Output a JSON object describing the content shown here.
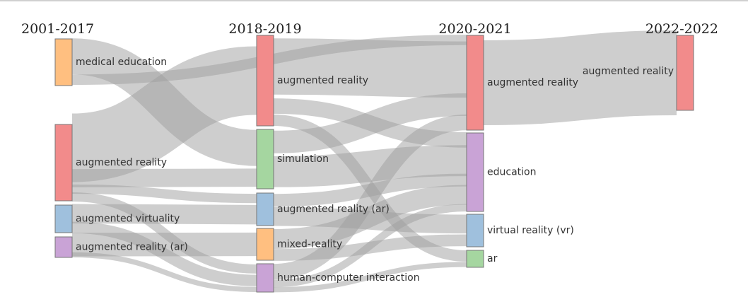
{
  "columns": [
    "2001-2017",
    "2018-2019",
    "2020-2021",
    "2022-2022"
  ],
  "nodes": [
    {
      "id": "c0_medical",
      "label": "medical education",
      "column": 0,
      "color": "#ffbf80"
    },
    {
      "id": "c0_ar",
      "label": "augmented reality",
      "column": 0,
      "color": "#f28b8b"
    },
    {
      "id": "c0_av",
      "label": "augmented virtuality",
      "column": 0,
      "color": "#9fc0dd"
    },
    {
      "id": "c0_arar",
      "label": "augmented reality (ar)",
      "column": 0,
      "color": "#c9a3d6"
    },
    {
      "id": "c1_ar",
      "label": "augmented reality",
      "column": 1,
      "color": "#f28b8b"
    },
    {
      "id": "c1_sim",
      "label": "simulation",
      "column": 1,
      "color": "#a5d6a0"
    },
    {
      "id": "c1_arar",
      "label": "augmented reality (ar)",
      "column": 1,
      "color": "#9fc0dd"
    },
    {
      "id": "c1_mr",
      "label": "mixed-reality",
      "column": 1,
      "color": "#ffbf80"
    },
    {
      "id": "c1_hci",
      "label": "human-computer interaction",
      "column": 1,
      "color": "#c9a3d6"
    },
    {
      "id": "c2_ar",
      "label": "augmented reality",
      "column": 2,
      "color": "#f28b8b"
    },
    {
      "id": "c2_edu",
      "label": "education",
      "column": 2,
      "color": "#c9a3d6"
    },
    {
      "id": "c2_vr",
      "label": "virtual reality (vr)",
      "column": 2,
      "color": "#9fc0dd"
    },
    {
      "id": "c2_ar2",
      "label": "ar",
      "column": 2,
      "color": "#a5d6a0"
    },
    {
      "id": "c3_ar",
      "label": "augmented reality",
      "column": 3,
      "color": "#f28b8b"
    }
  ],
  "links": [
    {
      "source": "c0_medical",
      "target": "c1_sim",
      "value": 30
    },
    {
      "source": "c0_medical",
      "target": "c2_ar",
      "value": 10
    },
    {
      "source": "c0_ar",
      "target": "c1_ar",
      "value": 60
    },
    {
      "source": "c0_ar",
      "target": "c1_sim",
      "value": 18
    },
    {
      "source": "c0_ar",
      "target": "c1_arar",
      "value": 10
    },
    {
      "source": "c0_ar",
      "target": "c1_hci",
      "value": 10
    },
    {
      "source": "c0_av",
      "target": "c1_arar",
      "value": 20
    },
    {
      "source": "c0_av",
      "target": "c1_hci",
      "value": 12
    },
    {
      "source": "c0_arar",
      "target": "c1_mr",
      "value": 15
    },
    {
      "source": "c0_arar",
      "target": "c1_hci",
      "value": 5
    },
    {
      "source": "c1_ar",
      "target": "c2_ar",
      "value": 55
    },
    {
      "source": "c1_ar",
      "target": "c2_edu",
      "value": 15
    },
    {
      "source": "c1_ar",
      "target": "c2_ar2",
      "value": 10
    },
    {
      "source": "c1_sim",
      "target": "c2_ar",
      "value": 22
    },
    {
      "source": "c1_sim",
      "target": "c2_edu",
      "value": 30
    },
    {
      "source": "c1_arar",
      "target": "c2_edu",
      "value": 12
    },
    {
      "source": "c1_arar",
      "target": "c2_vr",
      "value": 15
    },
    {
      "source": "c1_mr",
      "target": "c2_edu",
      "value": 20
    },
    {
      "source": "c1_mr",
      "target": "c2_vr",
      "value": 10
    },
    {
      "source": "c1_hci",
      "target": "c2_ar",
      "value": 17
    },
    {
      "source": "c1_hci",
      "target": "c2_edu",
      "value": 8
    },
    {
      "source": "c1_hci",
      "target": "c2_ar2",
      "value": 5
    },
    {
      "source": "c2_ar",
      "target": "c3_ar",
      "value": 70
    }
  ]
}
